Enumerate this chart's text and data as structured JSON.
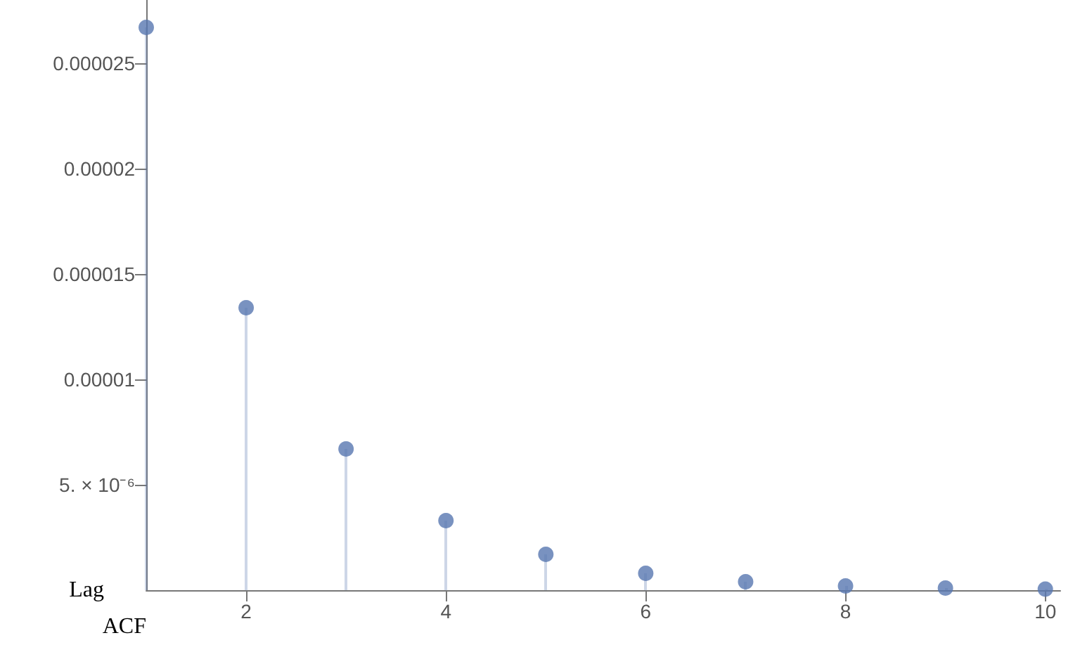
{
  "chart_data": {
    "type": "lollipop",
    "xlabel": "Lag",
    "ylabel": "ACF",
    "x": [
      1,
      2,
      3,
      4,
      5,
      6,
      7,
      8,
      9,
      10
    ],
    "values": [
      2.67e-05,
      1.34e-05,
      6.7e-06,
      3.3e-06,
      1.7e-06,
      8e-07,
      4e-07,
      2e-07,
      1e-07,
      5e-08
    ],
    "color": "#5877b0",
    "xlim": [
      1,
      10.15
    ],
    "xticks": [
      2,
      4,
      6,
      8,
      10
    ],
    "ylim": [
      0,
      2.8e-05
    ],
    "yticks": [
      {
        "value": 5e-06,
        "label": "5. × 10⁻⁶"
      },
      {
        "value": 1e-05,
        "label": "0.00001"
      },
      {
        "value": 1.5e-05,
        "label": "0.000015"
      },
      {
        "value": 2e-05,
        "label": "0.00002"
      },
      {
        "value": 2.5e-05,
        "label": "0.000025"
      }
    ],
    "grid": false,
    "marker": "circle"
  }
}
